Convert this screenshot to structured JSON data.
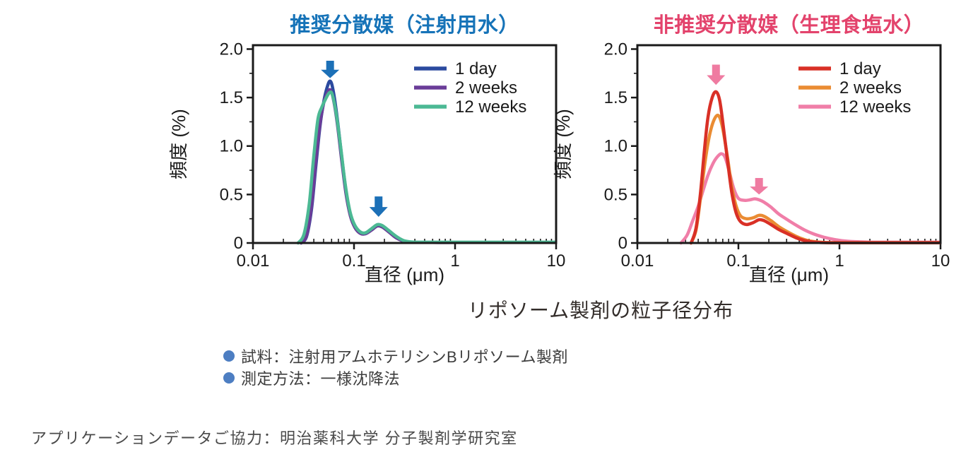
{
  "page": {
    "background": "#ffffff"
  },
  "figure_caption": "リポソーム製剤の粒子径分布",
  "notes": {
    "bullet_color": "#4d7ec2",
    "items": [
      {
        "text": "試料：注射用アムホテリシンBリポソーム製剤"
      },
      {
        "text": "測定方法：一様沈降法"
      }
    ]
  },
  "credit": "アプリケーションデータご協力：明治薬科大学 分子製剤学研究室",
  "chart_data": [
    {
      "type": "line",
      "title": "推奨分散媒（注射用水）",
      "title_color": "#1673b8",
      "xlabel": "直径 (μm)",
      "ylabel": "頻度 (%)",
      "xscale": "log",
      "xlim": [
        0.01,
        10
      ],
      "ylim": [
        0,
        2.04
      ],
      "x_ticks": [
        {
          "v": 0.01,
          "label": "0.01"
        },
        {
          "v": 0.1,
          "label": "0.1"
        },
        {
          "v": 1,
          "label": "1"
        },
        {
          "v": 10,
          "label": "10"
        }
      ],
      "y_ticks": [
        {
          "v": 0,
          "label": "0"
        },
        {
          "v": 0.5,
          "label": "0.5"
        },
        {
          "v": 1,
          "label": "1.0"
        },
        {
          "v": 1.5,
          "label": "1.5"
        },
        {
          "v": 2,
          "label": "2.0"
        }
      ],
      "y_minor_step": 0.25,
      "grid": false,
      "legend_position": "top-right",
      "frame": "box",
      "draw_order": [
        0,
        1,
        2
      ],
      "series": [
        {
          "name": "1 day",
          "color": "#2b4a9f",
          "points": [
            [
              0.03,
              0
            ],
            [
              0.034,
              0.07
            ],
            [
              0.038,
              0.35
            ],
            [
              0.042,
              0.8
            ],
            [
              0.046,
              1.2
            ],
            [
              0.05,
              1.45
            ],
            [
              0.054,
              1.6
            ],
            [
              0.058,
              1.67
            ],
            [
              0.062,
              1.58
            ],
            [
              0.068,
              1.3
            ],
            [
              0.075,
              0.92
            ],
            [
              0.083,
              0.55
            ],
            [
              0.092,
              0.3
            ],
            [
              0.102,
              0.17
            ],
            [
              0.115,
              0.105
            ],
            [
              0.13,
              0.1
            ],
            [
              0.15,
              0.14
            ],
            [
              0.17,
              0.18
            ],
            [
              0.19,
              0.17
            ],
            [
              0.22,
              0.12
            ],
            [
              0.26,
              0.06
            ],
            [
              0.31,
              0.02
            ],
            [
              0.38,
              0.008
            ],
            [
              0.6,
              0.006
            ],
            [
              1,
              0.006
            ],
            [
              3,
              0.006
            ],
            [
              10,
              0.006
            ]
          ]
        },
        {
          "name": "2 weeks",
          "color": "#6a3d98",
          "points": [
            [
              0.03,
              0
            ],
            [
              0.034,
              0.08
            ],
            [
              0.038,
              0.38
            ],
            [
              0.042,
              0.85
            ],
            [
              0.046,
              1.22
            ],
            [
              0.05,
              1.44
            ],
            [
              0.054,
              1.54
            ],
            [
              0.058,
              1.58
            ],
            [
              0.062,
              1.5
            ],
            [
              0.068,
              1.25
            ],
            [
              0.075,
              0.88
            ],
            [
              0.083,
              0.52
            ],
            [
              0.092,
              0.28
            ],
            [
              0.102,
              0.16
            ],
            [
              0.115,
              0.1
            ],
            [
              0.13,
              0.095
            ],
            [
              0.15,
              0.135
            ],
            [
              0.17,
              0.175
            ],
            [
              0.19,
              0.165
            ],
            [
              0.22,
              0.115
            ],
            [
              0.26,
              0.055
            ],
            [
              0.31,
              0.018
            ],
            [
              0.38,
              0.007
            ],
            [
              0.6,
              0.005
            ],
            [
              1,
              0.005
            ],
            [
              3,
              0.005
            ],
            [
              10,
              0.005
            ]
          ]
        },
        {
          "name": "12 weeks",
          "color": "#4cb994",
          "points": [
            [
              0.028,
              0
            ],
            [
              0.032,
              0.09
            ],
            [
              0.036,
              0.4
            ],
            [
              0.04,
              0.9
            ],
            [
              0.044,
              1.28
            ],
            [
              0.048,
              1.4
            ],
            [
              0.052,
              1.48
            ],
            [
              0.057,
              1.55
            ],
            [
              0.061,
              1.53
            ],
            [
              0.067,
              1.32
            ],
            [
              0.074,
              0.98
            ],
            [
              0.082,
              0.6
            ],
            [
              0.091,
              0.33
            ],
            [
              0.101,
              0.19
            ],
            [
              0.115,
              0.115
            ],
            [
              0.13,
              0.105
            ],
            [
              0.15,
              0.15
            ],
            [
              0.17,
              0.19
            ],
            [
              0.19,
              0.18
            ],
            [
              0.22,
              0.13
            ],
            [
              0.26,
              0.07
            ],
            [
              0.31,
              0.025
            ],
            [
              0.38,
              0.01
            ],
            [
              0.6,
              0.008
            ],
            [
              1,
              0.008
            ],
            [
              3,
              0.008
            ],
            [
              10,
              0.008
            ]
          ]
        }
      ],
      "arrows": [
        {
          "x": 0.058,
          "y_top": 1.88,
          "y_tip": 1.7,
          "color": "#1c70b7"
        },
        {
          "x": 0.175,
          "y_top": 0.48,
          "y_tip": 0.27,
          "color": "#1c70b7"
        }
      ]
    },
    {
      "type": "line",
      "title": "非推奨分散媒（生理食塩水）",
      "title_color": "#e3436c",
      "xlabel": "直径 (μm)",
      "ylabel": "頻度 (%)",
      "xscale": "log",
      "xlim": [
        0.01,
        10
      ],
      "ylim": [
        0,
        2.04
      ],
      "x_ticks": [
        {
          "v": 0.01,
          "label": "0.01"
        },
        {
          "v": 0.1,
          "label": "0.1"
        },
        {
          "v": 1,
          "label": "1"
        },
        {
          "v": 10,
          "label": "10"
        }
      ],
      "y_ticks": [
        {
          "v": 0,
          "label": "0"
        },
        {
          "v": 0.5,
          "label": "0.5"
        },
        {
          "v": 1,
          "label": "1.0"
        },
        {
          "v": 1.5,
          "label": "1.5"
        },
        {
          "v": 2,
          "label": "2.0"
        }
      ],
      "y_minor_step": 0.25,
      "grid": false,
      "legend_position": "top-right",
      "frame": "box",
      "draw_order": [
        2,
        1,
        0
      ],
      "series": [
        {
          "name": "1 day",
          "color": "#d93026",
          "points": [
            [
              0.034,
              0
            ],
            [
              0.038,
              0.15
            ],
            [
              0.042,
              0.5
            ],
            [
              0.046,
              0.95
            ],
            [
              0.05,
              1.3
            ],
            [
              0.055,
              1.5
            ],
            [
              0.06,
              1.56
            ],
            [
              0.065,
              1.48
            ],
            [
              0.07,
              1.25
            ],
            [
              0.078,
              0.85
            ],
            [
              0.086,
              0.52
            ],
            [
              0.095,
              0.31
            ],
            [
              0.105,
              0.22
            ],
            [
              0.12,
              0.19
            ],
            [
              0.14,
              0.21
            ],
            [
              0.16,
              0.24
            ],
            [
              0.18,
              0.23
            ],
            [
              0.21,
              0.19
            ],
            [
              0.25,
              0.14
            ],
            [
              0.3,
              0.1
            ],
            [
              0.37,
              0.055
            ],
            [
              0.45,
              0.025
            ],
            [
              0.55,
              0.01
            ],
            [
              0.7,
              0.004
            ],
            [
              1,
              0.003
            ],
            [
              3,
              0.003
            ],
            [
              10,
              0.003
            ]
          ]
        },
        {
          "name": "2 weeks",
          "color": "#ea8c33",
          "points": [
            [
              0.034,
              0
            ],
            [
              0.038,
              0.13
            ],
            [
              0.042,
              0.45
            ],
            [
              0.047,
              0.85
            ],
            [
              0.052,
              1.12
            ],
            [
              0.058,
              1.28
            ],
            [
              0.064,
              1.31
            ],
            [
              0.07,
              1.18
            ],
            [
              0.078,
              0.88
            ],
            [
              0.086,
              0.58
            ],
            [
              0.095,
              0.38
            ],
            [
              0.105,
              0.28
            ],
            [
              0.12,
              0.25
            ],
            [
              0.14,
              0.26
            ],
            [
              0.16,
              0.285
            ],
            [
              0.18,
              0.275
            ],
            [
              0.21,
              0.23
            ],
            [
              0.25,
              0.17
            ],
            [
              0.3,
              0.12
            ],
            [
              0.37,
              0.07
            ],
            [
              0.45,
              0.035
            ],
            [
              0.55,
              0.015
            ],
            [
              0.7,
              0.006
            ],
            [
              1,
              0.004
            ],
            [
              3,
              0.004
            ],
            [
              10,
              0.004
            ]
          ]
        },
        {
          "name": "12 weeks",
          "color": "#f07ea8",
          "points": [
            [
              0.027,
              0
            ],
            [
              0.031,
              0.08
            ],
            [
              0.035,
              0.22
            ],
            [
              0.04,
              0.38
            ],
            [
              0.045,
              0.55
            ],
            [
              0.05,
              0.7
            ],
            [
              0.056,
              0.82
            ],
            [
              0.062,
              0.89
            ],
            [
              0.068,
              0.92
            ],
            [
              0.074,
              0.88
            ],
            [
              0.082,
              0.72
            ],
            [
              0.09,
              0.56
            ],
            [
              0.1,
              0.46
            ],
            [
              0.115,
              0.44
            ],
            [
              0.13,
              0.445
            ],
            [
              0.145,
              0.455
            ],
            [
              0.16,
              0.445
            ],
            [
              0.18,
              0.42
            ],
            [
              0.21,
              0.37
            ],
            [
              0.25,
              0.3
            ],
            [
              0.3,
              0.245
            ],
            [
              0.37,
              0.185
            ],
            [
              0.45,
              0.135
            ],
            [
              0.55,
              0.095
            ],
            [
              0.7,
              0.06
            ],
            [
              0.9,
              0.035
            ],
            [
              1.2,
              0.018
            ],
            [
              1.8,
              0.01
            ],
            [
              3,
              0.008
            ],
            [
              10,
              0.008
            ]
          ]
        }
      ],
      "arrows": [
        {
          "x": 0.06,
          "y_top": 1.84,
          "y_tip": 1.63,
          "color": "#ef7ba1"
        },
        {
          "x": 0.16,
          "y_top": 0.67,
          "y_tip": 0.5,
          "color": "#ef7ba1"
        }
      ]
    }
  ]
}
